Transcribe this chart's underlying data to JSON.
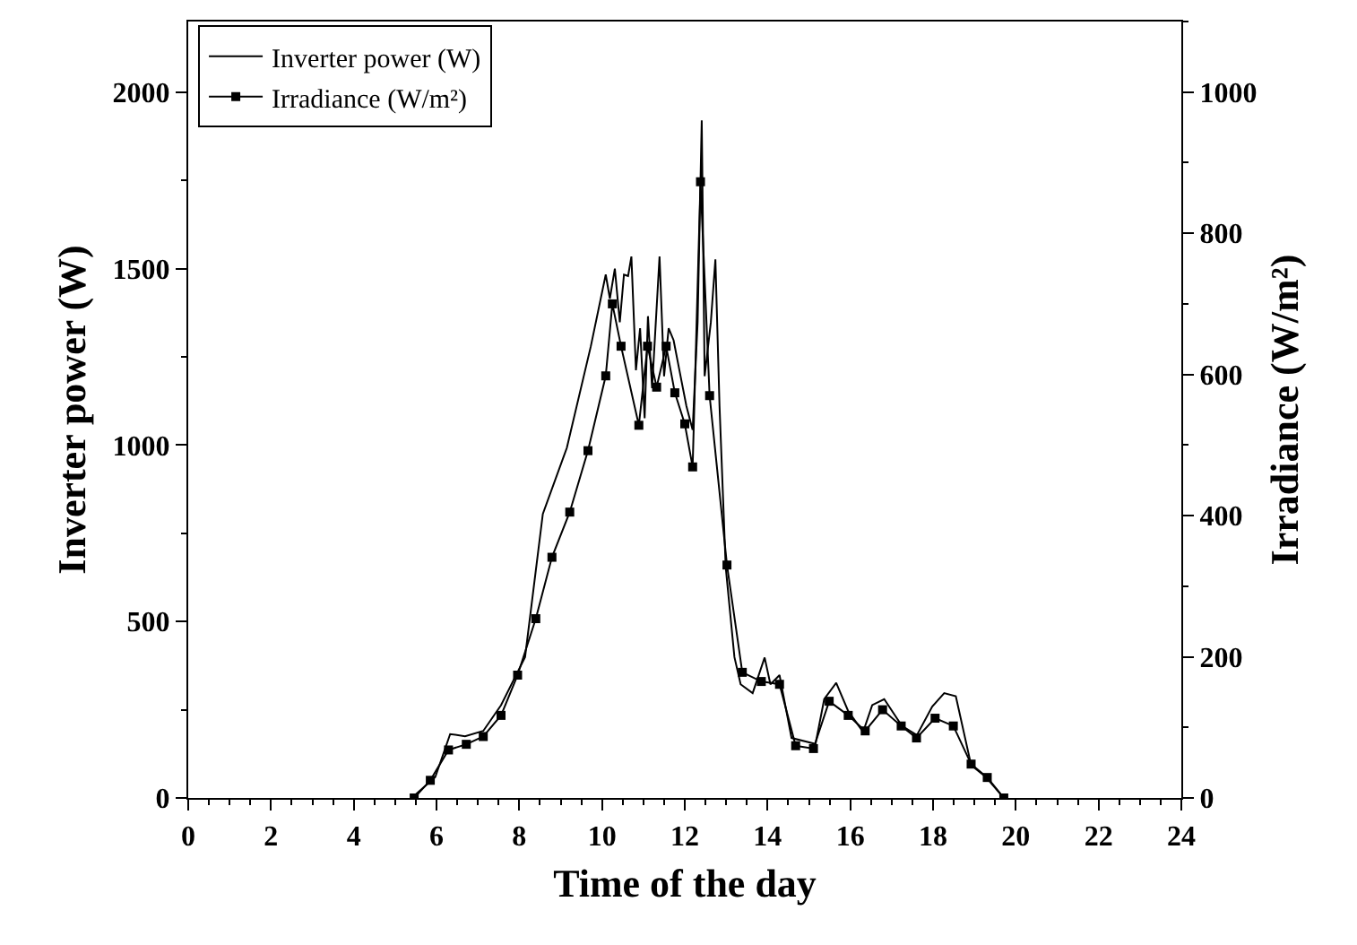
{
  "chart_data": {
    "type": "line",
    "xlabel": "Time of the day",
    "ylabel": "Inverter power (W)",
    "y2label": "Irradiance (W/m²)",
    "xlim": [
      0,
      24
    ],
    "xticks": [
      0,
      2,
      4,
      6,
      8,
      10,
      12,
      14,
      16,
      18,
      20,
      22,
      24
    ],
    "ylim": [
      0,
      2200
    ],
    "yticks": [
      0,
      500,
      1000,
      1500,
      2000
    ],
    "y2lim": [
      0,
      1100
    ],
    "y2ticks": [
      0,
      200,
      400,
      600,
      800,
      1000
    ],
    "legend": "top left",
    "series": [
      {
        "name": "Inverter power (W)",
        "color": "#000000",
        "marker": "none",
        "x": [
          5.4,
          5.97,
          6.33,
          6.69,
          7.13,
          7.56,
          8.14,
          8.57,
          9.15,
          9.73,
          10.09,
          10.19,
          10.31,
          10.43,
          10.53,
          10.63,
          10.71,
          10.82,
          10.92,
          11.03,
          11.11,
          11.21,
          11.39,
          11.5,
          11.61,
          11.73,
          11.87,
          12.04,
          12.19,
          12.31,
          12.41,
          12.48,
          12.63,
          12.74,
          12.84,
          12.99,
          13.2,
          13.35,
          13.64,
          13.93,
          14.07,
          14.29,
          14.58,
          15.16,
          15.37,
          15.66,
          15.95,
          16.31,
          16.53,
          16.82,
          17.25,
          17.61,
          17.98,
          18.27,
          18.55,
          18.92,
          19.28,
          19.71
        ],
        "values": [
          0,
          59,
          181,
          175,
          190,
          263,
          399,
          805,
          992,
          1280,
          1483,
          1415,
          1500,
          1348,
          1483,
          1479,
          1534,
          1212,
          1331,
          1076,
          1365,
          1161,
          1534,
          1195,
          1331,
          1297,
          1212,
          1110,
          1043,
          1348,
          1920,
          1195,
          1348,
          1526,
          1110,
          653,
          399,
          322,
          297,
          398,
          322,
          348,
          170,
          153,
          280,
          326,
          246,
          187,
          263,
          280,
          204,
          178,
          259,
          297,
          288,
          93,
          59,
          0
        ]
      },
      {
        "name": "Irradiance (W/m²)",
        "color": "#000000",
        "marker": "square",
        "axis": "y2",
        "x": [
          5.46,
          5.85,
          6.29,
          6.72,
          7.13,
          7.56,
          7.96,
          8.4,
          8.79,
          9.22,
          9.66,
          10.09,
          10.25,
          10.46,
          10.89,
          11.1,
          11.32,
          11.55,
          11.76,
          12.0,
          12.19,
          12.38,
          12.6,
          13.02,
          13.39,
          13.85,
          14.29,
          14.68,
          15.11,
          15.49,
          15.95,
          16.36,
          16.78,
          17.23,
          17.6,
          18.05,
          18.49,
          18.92,
          19.31,
          19.71
        ],
        "values": [
          0,
          25,
          68,
          76,
          87,
          117,
          174,
          254,
          341,
          405,
          492,
          598,
          700,
          640,
          528,
          640,
          582,
          640,
          574,
          530,
          469,
          873,
          570,
          330,
          178,
          165,
          161,
          74,
          70,
          137,
          117,
          95,
          125,
          102,
          85,
          113,
          102,
          48,
          29,
          0
        ]
      }
    ]
  }
}
